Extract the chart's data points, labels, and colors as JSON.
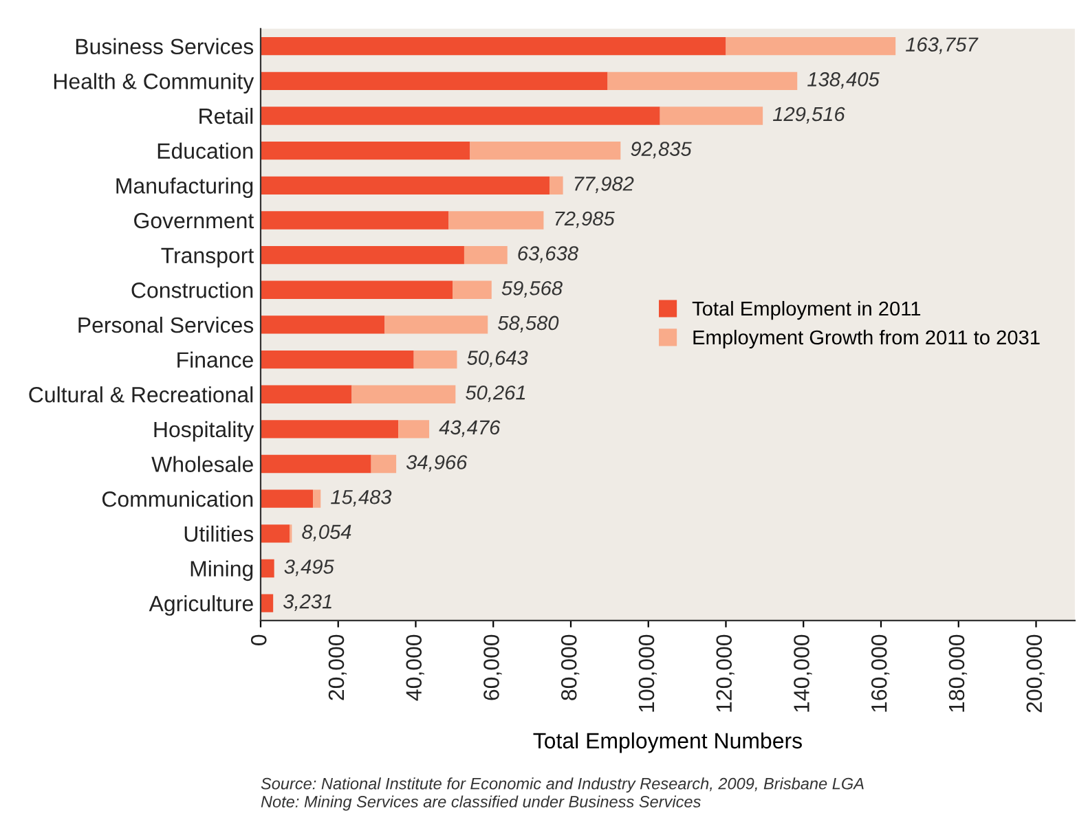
{
  "chart_data": {
    "type": "bar",
    "orientation": "horizontal",
    "stacked": true,
    "categories": [
      "Business Services",
      "Health & Community",
      "Retail",
      "Education",
      "Manufacturing",
      "Government",
      "Transport",
      "Construction",
      "Personal Services",
      "Finance",
      "Cultural & Recreational",
      "Hospitality",
      "Wholesale",
      "Communication",
      "Utilities",
      "Mining",
      "Agriculture"
    ],
    "series": [
      {
        "name": "Total Employment in 2011",
        "color": "#f04e30",
        "values": [
          120000,
          89500,
          103000,
          54000,
          74500,
          48500,
          52500,
          49500,
          32000,
          39500,
          23500,
          35500,
          28500,
          13500,
          7500,
          3495,
          3231
        ]
      },
      {
        "name": "Employment Growth from 2011 to 2031",
        "color": "#f9ab8a",
        "values": [
          43757,
          48905,
          26516,
          38835,
          3482,
          24485,
          11138,
          10068,
          26580,
          11143,
          26761,
          7976,
          6466,
          1983,
          554,
          0,
          0
        ]
      }
    ],
    "totals": [
      "163,757",
      "138,405",
      "129,516",
      "92,835",
      "77,982",
      "72,985",
      "63,638",
      "59,568",
      "58,580",
      "50,643",
      "50,261",
      "43,476",
      "34,966",
      "15,483",
      "8,054",
      "3,495",
      "3,231"
    ],
    "xlim": [
      0,
      210000
    ],
    "xticks": [
      0,
      {
        "value": 20000,
        "label": "20,000"
      },
      {
        "value": 40000,
        "label": "40,000"
      },
      {
        "value": 60000,
        "label": "60,000"
      },
      {
        "value": 80000,
        "label": "80,000"
      },
      {
        "value": 100000,
        "label": "100,000"
      },
      {
        "value": 120000,
        "label": "120,000"
      },
      {
        "value": 140000,
        "label": "140,000"
      },
      {
        "value": 160000,
        "label": "160,000"
      },
      {
        "value": 180000,
        "label": "180,000"
      },
      {
        "value": 200000,
        "label": "200,000"
      }
    ],
    "xlabel": "Total Employment Numbers",
    "legend": "right",
    "grid": false,
    "annotations": [
      "Source: National Institute for Economic and Industry Research, 2009, Brisbane LGA",
      "Note: Mining Services are classified under Business Services"
    ]
  }
}
